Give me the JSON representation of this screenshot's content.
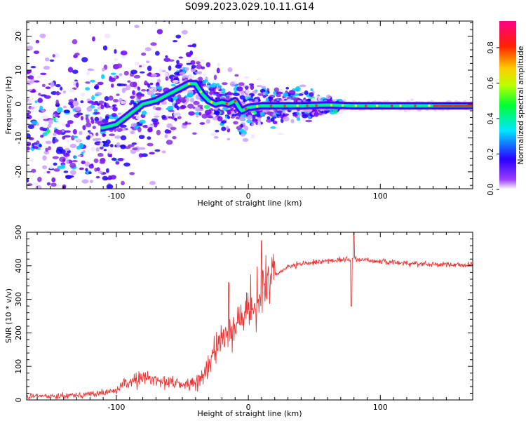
{
  "figure": {
    "title": "S099.2023.029.10.11.G14"
  },
  "chart_data": [
    {
      "type": "heatmap",
      "xlabel": "Height of straight line (km)",
      "ylabel": "Frequency (Hz)",
      "xlim": [
        -168,
        170
      ],
      "ylim": [
        -25,
        24.5
      ],
      "xticks": [
        -100,
        0,
        100
      ],
      "yticks": [
        -20,
        -10,
        0,
        10,
        20
      ],
      "colorbar": {
        "label": "Normalized spectral amplitude",
        "range": [
          0,
          0.95
        ],
        "ticks": [
          0.0,
          0.2,
          0.4,
          0.6,
          0.8
        ],
        "colormap": [
          "#ffffff",
          "#8000ff",
          "#0000ff",
          "#00ffff",
          "#00ff00",
          "#ffff00",
          "#ff8000",
          "#ff0000",
          "#ff0080"
        ]
      },
      "ridge": {
        "name": "",
        "x": [
          -110,
          -100,
          -90,
          -80,
          -70,
          -60,
          -50,
          -45,
          -40,
          -35,
          -30,
          -25,
          -20,
          -15,
          -10,
          -7,
          -5,
          0,
          10,
          20,
          40,
          60,
          80,
          100,
          120,
          140,
          170
        ],
        "y": [
          -7,
          -6,
          -3,
          0,
          1,
          3,
          5,
          6,
          6,
          3,
          1,
          0,
          0.5,
          0,
          1,
          -1,
          -2,
          -1,
          -0.5,
          -0.5,
          -0.5,
          -0.3,
          -0.5,
          -0.5,
          -0.5,
          -0.5,
          -0.5
        ]
      }
    },
    {
      "type": "line",
      "xlabel": "Height of straight line (km)",
      "ylabel": "SNR (10 * v/v)",
      "xlim": [
        -168,
        170
      ],
      "ylim": [
        0,
        500
      ],
      "xticks": [
        -100,
        0,
        100
      ],
      "yticks": [
        0,
        100,
        200,
        300,
        400,
        500
      ],
      "color": "#ee3333",
      "series": [
        {
          "name": "",
          "x": [
            -168,
            -150,
            -130,
            -110,
            -100,
            -90,
            -80,
            -70,
            -60,
            -50,
            -40,
            -30,
            -25,
            -20,
            -15,
            -10,
            -5,
            0,
            5,
            10,
            12,
            15,
            20,
            25,
            30,
            40,
            50,
            60,
            70,
            80,
            90,
            100,
            120,
            140,
            170
          ],
          "y": [
            10,
            12,
            15,
            20,
            30,
            55,
            65,
            60,
            55,
            45,
            50,
            90,
            150,
            180,
            200,
            220,
            240,
            260,
            280,
            300,
            330,
            350,
            370,
            385,
            395,
            405,
            410,
            415,
            418,
            420,
            418,
            412,
            408,
            405,
            402
          ]
        }
      ],
      "spikes": {
        "x": [
          -15,
          10,
          80,
          78
        ],
        "y": [
          350,
          475,
          500,
          280
        ]
      }
    }
  ]
}
